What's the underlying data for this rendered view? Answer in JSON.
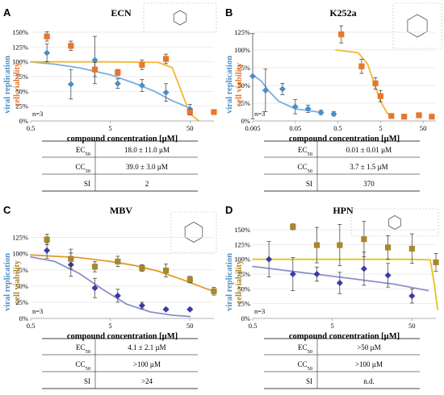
{
  "colors": {
    "viral_blue": "#4a8fc8",
    "viability_orange": "#e8762b",
    "viability_gold": "#a8872c",
    "blue_curve": "#7aaede",
    "gold_curve": "#f2b830",
    "purple_curve": "#8b90cc",
    "navy_marker": "#3d3aa6",
    "yellow_curve": "#e6c21f",
    "orange_curve": "#e39a2a"
  },
  "chart_data": [
    {
      "panel": "A",
      "type": "scatter",
      "title": "ECN",
      "xlabel": "compound concentration [µM]",
      "ylabel_left": "viral replication",
      "ylabel_right": "cell viability",
      "x_scale": "log",
      "x_ticks": [
        0.5,
        5,
        50
      ],
      "x_tick_labels": [
        "0.5",
        "5",
        "50"
      ],
      "xlim": [
        0.5,
        100
      ],
      "y_ticks": [
        0,
        25,
        50,
        75,
        100,
        125,
        150
      ],
      "y_tick_labels": [
        "0%",
        "25%",
        "50%",
        "75%",
        "100%",
        "125%",
        "150%"
      ],
      "ylim": [
        0,
        150
      ],
      "n_label": "n=3",
      "series": [
        {
          "role": "viral replication",
          "marker": "diamond",
          "color": "#4a8fc8",
          "x": [
            0.8,
            1.6,
            3.2,
            6.2,
            12.5,
            25,
            50
          ],
          "y": [
            115,
            62,
            103,
            63,
            60,
            48,
            20
          ],
          "err": [
            15,
            25,
            40,
            8,
            10,
            15,
            8
          ]
        },
        {
          "role": "cell viability",
          "marker": "square",
          "color": "#e8762b",
          "x": [
            0.8,
            1.6,
            3.2,
            6.2,
            12.5,
            25,
            50,
            100
          ],
          "y": [
            143,
            127,
            87,
            82,
            95,
            105,
            15,
            15
          ],
          "err": [
            8,
            8,
            12,
            5,
            8,
            8,
            5,
            3
          ]
        }
      ],
      "curves": [
        {
          "role": "viral fit",
          "color": "#7aaede",
          "x": [
            0.5,
            1,
            2,
            5,
            10,
            18,
            30,
            50
          ],
          "y": [
            100,
            96,
            90,
            78,
            64,
            50,
            34,
            22
          ]
        },
        {
          "role": "viability fit",
          "color": "#f2b830",
          "x": [
            0.5,
            5,
            20,
            30,
            39,
            50,
            65
          ],
          "y": [
            100,
            100,
            99,
            90,
            50,
            12,
            0
          ]
        }
      ],
      "table": [
        {
          "label": "EC",
          "sub": "50",
          "value": "18.0 ± 11.0 µM"
        },
        {
          "label": "CC",
          "sub": "50",
          "value": "39.0 ± 3.0 µM"
        },
        {
          "label": "SI",
          "sub": "",
          "value": "2"
        }
      ]
    },
    {
      "panel": "B",
      "type": "scatter",
      "title": "K252a",
      "xlabel": "compound concentration [µM]",
      "ylabel_left": "viral replication",
      "ylabel_right": "cell viability",
      "x_scale": "log",
      "x_ticks": [
        0.005,
        0.05,
        0.5,
        5,
        50
      ],
      "x_tick_labels": [
        "0.005",
        "0.05",
        "0.5",
        "5",
        "50"
      ],
      "xlim": [
        0.005,
        100
      ],
      "y_ticks": [
        0,
        25,
        50,
        75,
        100,
        125
      ],
      "y_tick_labels": [
        "0%",
        "25%",
        "50%",
        "75%",
        "100%",
        "125%"
      ],
      "ylim": [
        0,
        125
      ],
      "n_label": "n=3",
      "series": [
        {
          "role": "viral replication",
          "marker": "diamond",
          "color": "#4a8fc8",
          "x": [
            0.005,
            0.01,
            0.025,
            0.05,
            0.1,
            0.2,
            0.4
          ],
          "y": [
            63,
            43,
            45,
            20,
            17,
            12,
            10
          ],
          "err": [
            60,
            30,
            8,
            10,
            5,
            3,
            3
          ]
        },
        {
          "role": "cell viability",
          "marker": "square",
          "color": "#e8762b",
          "x": [
            0.6,
            1.8,
            3.8,
            5,
            9,
            18,
            40,
            80
          ],
          "y": [
            122,
            77,
            53,
            35,
            7,
            6,
            8,
            6
          ],
          "err": [
            12,
            10,
            8,
            8,
            3,
            3,
            3,
            3
          ]
        }
      ],
      "curves": [
        {
          "role": "viral fit",
          "color": "#7aaede",
          "x": [
            0.005,
            0.008,
            0.012,
            0.02,
            0.05,
            0.2
          ],
          "y": [
            65,
            56,
            42,
            28,
            17,
            12
          ]
        },
        {
          "role": "viability fit",
          "color": "#f2b830",
          "x": [
            0.45,
            1.5,
            2.5,
            3.7,
            5,
            7,
            9
          ],
          "y": [
            100,
            96,
            80,
            50,
            28,
            12,
            6
          ]
        }
      ],
      "table": [
        {
          "label": "EC",
          "sub": "50",
          "value": "0.01 ± 0.01 µM"
        },
        {
          "label": "CC",
          "sub": "50",
          "value": "3.7 ± 1.5 µM"
        },
        {
          "label": "SI",
          "sub": "",
          "value": "370"
        }
      ]
    },
    {
      "panel": "C",
      "type": "scatter",
      "title": "MBV",
      "xlabel": "compound concentration [µM]",
      "ylabel_left": "viral replication",
      "ylabel_right": "cell viability",
      "x_scale": "log",
      "x_ticks": [
        0.5,
        5,
        50
      ],
      "x_tick_labels": [
        "0.5",
        "5",
        "50"
      ],
      "xlim": [
        0.5,
        100
      ],
      "y_ticks": [
        0,
        25,
        50,
        75,
        100,
        125
      ],
      "y_tick_labels": [
        "0%",
        "25%",
        "50%",
        "75%",
        "100%",
        "125%"
      ],
      "ylim": [
        0,
        137
      ],
      "n_label": "n=3",
      "series": [
        {
          "role": "viral replication",
          "marker": "diamond",
          "color": "#3d3aa6",
          "x": [
            0.8,
            1.6,
            3.2,
            6.2,
            12.5,
            25,
            50
          ],
          "y": [
            105,
            83,
            47,
            35,
            20,
            14,
            14
          ],
          "err": [
            12,
            18,
            15,
            10,
            5,
            2,
            2
          ]
        },
        {
          "role": "cell viability",
          "marker": "square",
          "color": "#a8872c",
          "x": [
            0.8,
            1.6,
            3.2,
            6.2,
            12.5,
            25,
            50,
            100
          ],
          "y": [
            122,
            92,
            80,
            88,
            78,
            74,
            60,
            42
          ],
          "err": [
            8,
            15,
            8,
            8,
            5,
            10,
            5,
            6
          ]
        }
      ],
      "curves": [
        {
          "role": "viral fit",
          "color": "#8b90cc",
          "x": [
            0.5,
            1,
            2,
            4,
            8,
            16,
            30,
            50
          ],
          "y": [
            95,
            88,
            70,
            45,
            22,
            10,
            5,
            3
          ]
        },
        {
          "role": "viability fit",
          "color": "#e39a2a",
          "x": [
            0.5,
            2,
            5,
            10,
            20,
            40,
            80,
            100
          ],
          "y": [
            98,
            94,
            88,
            82,
            73,
            60,
            46,
            42
          ]
        }
      ],
      "table": [
        {
          "label": "EC",
          "sub": "50",
          "value": "4.1 ± 2.1 µM"
        },
        {
          "label": "CC",
          "sub": "50",
          "value": ">100 µM"
        },
        {
          "label": "SI",
          "sub": "",
          "value": ">24"
        }
      ]
    },
    {
      "panel": "D",
      "type": "scatter",
      "title": "HPN",
      "xlabel": "compound concentration [µM]",
      "ylabel_left": "viral replication",
      "ylabel_right": "cell viability",
      "x_scale": "log",
      "x_ticks": [
        0.5,
        5,
        50
      ],
      "x_tick_labels": [
        "0.5",
        "5",
        "50"
      ],
      "xlim": [
        0.5,
        100
      ],
      "y_ticks": [
        0,
        25,
        50,
        75,
        100,
        125,
        150
      ],
      "y_tick_labels": [
        "0%",
        "25%",
        "50%",
        "75%",
        "100%",
        "125%",
        "150%"
      ],
      "ylim": [
        0,
        150
      ],
      "n_label": "n=3",
      "series": [
        {
          "role": "viral replication",
          "marker": "diamond",
          "color": "#3d3aa6",
          "x": [
            0.8,
            1.6,
            3.2,
            6.2,
            12.5,
            25,
            50
          ],
          "y": [
            100,
            75,
            75,
            60,
            84,
            73,
            38
          ],
          "err": [
            30,
            28,
            12,
            18,
            28,
            20,
            12
          ]
        },
        {
          "role": "cell viability",
          "marker": "square",
          "color": "#a8872c",
          "x": [
            1.6,
            3.2,
            6.2,
            12.5,
            25,
            50,
            100
          ],
          "y": [
            155,
            124,
            124,
            134,
            120,
            118,
            95
          ],
          "err": [
            5,
            30,
            35,
            30,
            20,
            25,
            15
          ]
        }
      ],
      "curves": [
        {
          "role": "viral fit",
          "color": "#8b90cc",
          "x": [
            0.5,
            2,
            8,
            30,
            80
          ],
          "y": [
            88,
            78,
            68,
            58,
            47
          ]
        },
        {
          "role": "viability fit",
          "color": "#e6c21f",
          "x": [
            0.5,
            10,
            50,
            85,
            95,
            105
          ],
          "y": [
            100,
            100,
            100,
            99,
            60,
            15
          ]
        }
      ],
      "table": [
        {
          "label": "EC",
          "sub": "50",
          "value": ">50 µM"
        },
        {
          "label": "CC",
          "sub": "50",
          "value": ">100 µM"
        },
        {
          "label": "SI",
          "sub": "",
          "value": "n.d."
        }
      ]
    }
  ]
}
